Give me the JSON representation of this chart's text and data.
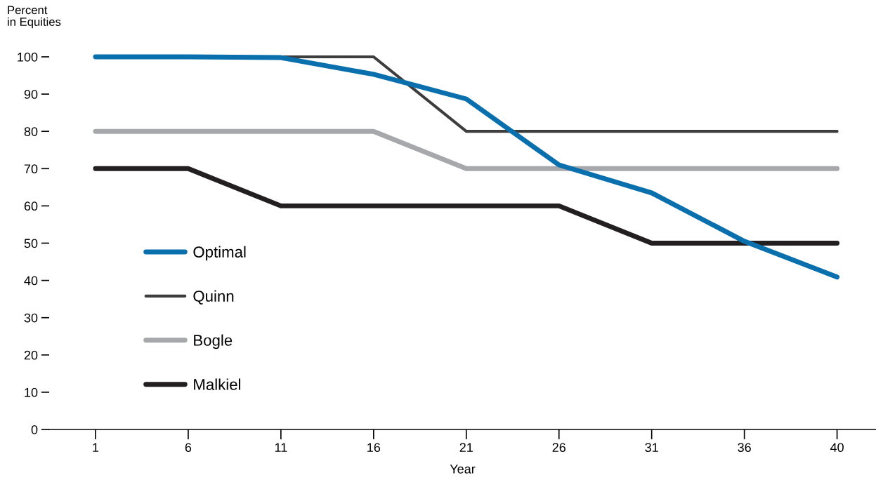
{
  "chart_data": {
    "type": "line",
    "ylabel": "Percent\nin Equities",
    "xlabel": "Year",
    "categories": [
      "1",
      "6",
      "11",
      "16",
      "21",
      "26",
      "31",
      "36",
      "40"
    ],
    "series": [
      {
        "name": "Optimal",
        "color": "#0a6fad",
        "values": [
          100,
          100,
          99.8,
          95.3,
          88.7,
          71,
          63.5,
          50.5,
          40.9
        ]
      },
      {
        "name": "Quinn",
        "color": "#3d3d3d",
        "values": [
          null,
          null,
          100,
          100,
          80,
          80,
          80,
          80,
          80
        ]
      },
      {
        "name": "Bogle",
        "color": "#a6a8ab",
        "values": [
          80,
          80,
          80,
          80,
          70,
          70,
          70,
          70,
          70
        ]
      },
      {
        "name": "Malkiel",
        "color": "#231f20",
        "values": [
          70,
          70,
          60,
          60,
          60,
          60,
          50,
          50,
          50
        ]
      }
    ],
    "ylim": [
      0,
      100
    ],
    "yticks": [
      0,
      10,
      20,
      30,
      40,
      50,
      60,
      70,
      80,
      90,
      100
    ],
    "grid": false,
    "legend": "bottom left",
    "marker": "none",
    "line_style": "solid"
  }
}
